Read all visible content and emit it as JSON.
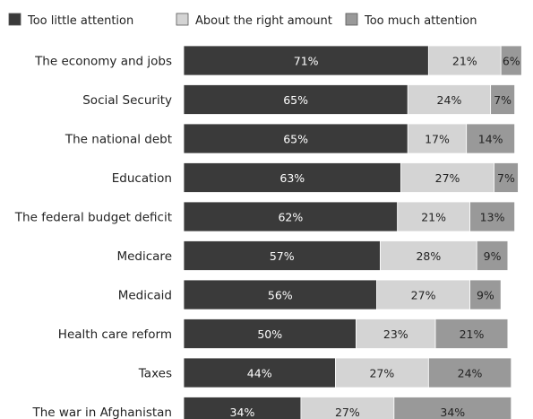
{
  "chart_data": {
    "type": "bar",
    "orientation": "horizontal",
    "stacked": true,
    "grid": false,
    "legend_position": "top",
    "title": "",
    "xlabel": "",
    "ylabel": "",
    "xlim": [
      0,
      100
    ],
    "categories": [
      "The economy and jobs",
      "Social Security",
      "The national debt",
      "Education",
      "The federal budget deficit",
      "Medicare",
      "Medicaid",
      "Health care reform",
      "Taxes",
      "The war in Afghanistan"
    ],
    "series": [
      {
        "name": "Too little attention",
        "color": "#3a3a3a",
        "label_color": "#ffffff",
        "values": [
          71,
          65,
          65,
          63,
          62,
          57,
          56,
          50,
          44,
          34
        ]
      },
      {
        "name": "About the right amount",
        "color": "#d4d4d4",
        "label_color": "#222222",
        "values": [
          21,
          24,
          17,
          27,
          21,
          28,
          27,
          23,
          27,
          27
        ]
      },
      {
        "name": "Too much attention",
        "color": "#999999",
        "label_color": "#222222",
        "values": [
          6,
          7,
          14,
          7,
          13,
          9,
          9,
          21,
          24,
          34
        ]
      }
    ],
    "value_suffix": "%"
  }
}
